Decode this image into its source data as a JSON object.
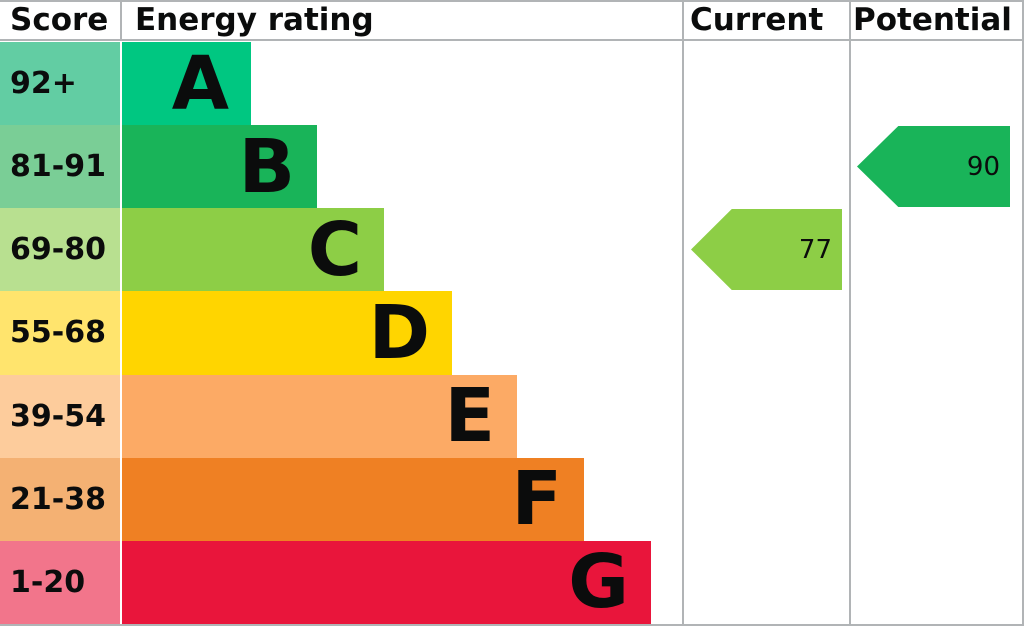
{
  "header": {
    "score": "Score",
    "energy_rating": "Energy rating",
    "current": "Current",
    "potential": "Potential"
  },
  "bands": [
    {
      "score": "92+",
      "letter": "A",
      "color": "#00c781",
      "tint": "#62cda3"
    },
    {
      "score": "81-91",
      "letter": "B",
      "color": "#19b459",
      "tint": "#7ace96"
    },
    {
      "score": "69-80",
      "letter": "C",
      "color": "#8dce46",
      "tint": "#b8e090"
    },
    {
      "score": "55-68",
      "letter": "D",
      "color": "#ffd500",
      "tint": "#ffe46d"
    },
    {
      "score": "39-54",
      "letter": "E",
      "color": "#fcaa65",
      "tint": "#fdcc9c"
    },
    {
      "score": "21-38",
      "letter": "F",
      "color": "#ef8023",
      "tint": "#f4b173"
    },
    {
      "score": "1-20",
      "letter": "G",
      "color": "#e9153b",
      "tint": "#f2758b"
    }
  ],
  "current": {
    "value": "77",
    "band": "C",
    "color": "#8dce46"
  },
  "potential": {
    "value": "90",
    "band": "B",
    "color": "#19b459"
  },
  "colors": {
    "grid_line": "#b1b4b6",
    "text": "#0b0c0c",
    "background": "#ffffff"
  },
  "chart_data": {
    "type": "bar",
    "orientation": "horizontal",
    "title": "Energy rating",
    "categories": [
      "A",
      "B",
      "C",
      "D",
      "E",
      "F",
      "G"
    ],
    "score_ranges": [
      "92+",
      "81-91",
      "69-80",
      "55-68",
      "39-54",
      "21-38",
      "1-20"
    ],
    "bar_lengths_relative": [
      1,
      1.51,
      2.03,
      2.56,
      3.06,
      3.58,
      4.1
    ],
    "band_colors": [
      "#00c781",
      "#19b459",
      "#8dce46",
      "#ffd500",
      "#fcaa65",
      "#ef8023",
      "#e9153b"
    ],
    "markers": [
      {
        "name": "Current",
        "value": 77,
        "band": "C",
        "color": "#8dce46"
      },
      {
        "name": "Potential",
        "value": 90,
        "band": "B",
        "color": "#19b459"
      }
    ],
    "columns": [
      "Score",
      "Energy rating",
      "Current",
      "Potential"
    ],
    "grid": false,
    "legend": false
  }
}
